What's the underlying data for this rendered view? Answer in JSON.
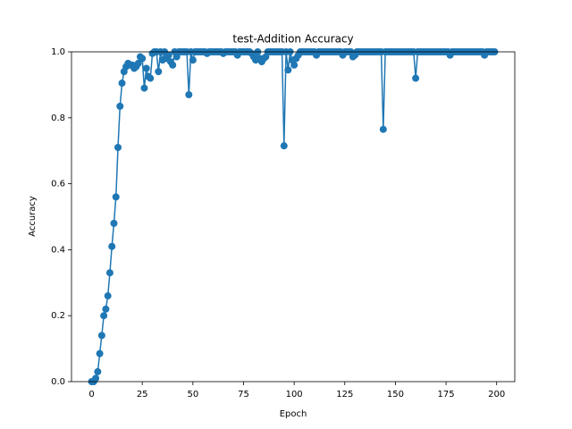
{
  "chart_data": {
    "type": "line",
    "title": "test-Addition Accuracy",
    "xlabel": "Epoch",
    "ylabel": "Accuracy",
    "color": "#1f77b4",
    "marker": "circle",
    "x": [
      0,
      1,
      2,
      3,
      4,
      5,
      6,
      7,
      8,
      9,
      10,
      11,
      12,
      13,
      14,
      15,
      16,
      17,
      18,
      19,
      20,
      21,
      22,
      23,
      24,
      25,
      26,
      27,
      28,
      29,
      30,
      31,
      32,
      33,
      34,
      35,
      36,
      37,
      38,
      39,
      40,
      41,
      42,
      43,
      44,
      45,
      46,
      47,
      48,
      49,
      50,
      51,
      52,
      53,
      54,
      55,
      56,
      57,
      58,
      59,
      60,
      61,
      62,
      63,
      64,
      65,
      66,
      67,
      68,
      69,
      70,
      71,
      72,
      73,
      74,
      75,
      76,
      77,
      78,
      79,
      80,
      81,
      82,
      83,
      84,
      85,
      86,
      87,
      88,
      89,
      90,
      91,
      92,
      93,
      94,
      95,
      96,
      97,
      98,
      99,
      100,
      101,
      102,
      103,
      104,
      105,
      106,
      107,
      108,
      109,
      110,
      111,
      112,
      113,
      114,
      115,
      116,
      117,
      118,
      119,
      120,
      121,
      122,
      123,
      124,
      125,
      126,
      127,
      128,
      129,
      130,
      131,
      132,
      133,
      134,
      135,
      136,
      137,
      138,
      139,
      140,
      141,
      142,
      143,
      144,
      145,
      146,
      147,
      148,
      149,
      150,
      151,
      152,
      153,
      154,
      155,
      156,
      157,
      158,
      159,
      160,
      161,
      162,
      163,
      164,
      165,
      166,
      167,
      168,
      169,
      170,
      171,
      172,
      173,
      174,
      175,
      176,
      177,
      178,
      179,
      180,
      181,
      182,
      183,
      184,
      185,
      186,
      187,
      188,
      189,
      190,
      191,
      192,
      193,
      194,
      195,
      196,
      197,
      198,
      199
    ],
    "values": [
      0,
      0,
      0.01,
      0.03,
      0.085,
      0.14,
      0.2,
      0.22,
      0.26,
      0.33,
      0.41,
      0.48,
      0.56,
      0.71,
      0.835,
      0.905,
      0.94,
      0.955,
      0.965,
      0.96,
      0.96,
      0.95,
      0.955,
      0.965,
      0.985,
      0.98,
      0.89,
      0.95,
      0.925,
      0.92,
      0.995,
      1,
      1,
      0.94,
      1,
      0.975,
      1,
      0.98,
      0.99,
      0.97,
      0.96,
      1,
      0.985,
      1,
      1,
      1,
      1,
      1,
      0.87,
      1,
      0.975,
      1,
      1,
      1,
      1,
      1,
      1,
      0.995,
      1,
      1,
      1,
      1,
      1,
      1,
      1,
      0.995,
      1,
      1,
      1,
      1,
      1,
      1,
      0.99,
      1,
      1,
      1,
      1,
      1,
      1,
      0.995,
      0.985,
      0.975,
      1,
      0.98,
      0.97,
      0.98,
      0.985,
      1,
      1,
      1,
      1,
      1,
      1,
      1,
      1,
      0.715,
      1,
      0.945,
      1,
      0.975,
      0.96,
      0.98,
      0.99,
      1,
      1,
      1,
      1,
      1,
      1,
      1,
      1,
      0.99,
      1,
      1,
      1,
      1,
      1,
      1,
      1,
      1,
      1,
      1,
      1,
      1,
      0.99,
      1,
      1,
      1,
      1,
      0.985,
      0.99,
      1,
      1,
      1,
      1,
      1,
      1,
      1,
      1,
      1,
      1,
      1,
      1,
      1,
      0.765,
      1,
      1,
      1,
      1,
      1,
      1,
      1,
      1,
      1,
      1,
      1,
      1,
      1,
      1,
      1,
      0.92,
      1,
      1,
      1,
      1,
      1,
      1,
      1,
      1,
      1,
      1,
      1,
      1,
      1,
      1,
      1,
      1,
      0.99,
      1,
      1,
      1,
      1,
      1,
      1,
      1,
      1,
      1,
      1,
      1,
      1,
      1,
      1,
      1,
      1,
      0.99,
      1,
      1,
      1,
      1,
      1
    ],
    "xlim": [
      -9.95,
      208.95
    ],
    "ylim": [
      0,
      1
    ],
    "xticks": [
      0,
      25,
      50,
      75,
      100,
      125,
      150,
      175,
      200
    ],
    "yticks": [
      {
        "value": 0,
        "label": "0.0"
      },
      {
        "value": 0.2,
        "label": "0.2"
      },
      {
        "value": 0.4,
        "label": "0.4"
      },
      {
        "value": 0.6,
        "label": "0.6"
      },
      {
        "value": 0.8,
        "label": "0.8"
      },
      {
        "value": 1,
        "label": "1.0"
      }
    ]
  }
}
